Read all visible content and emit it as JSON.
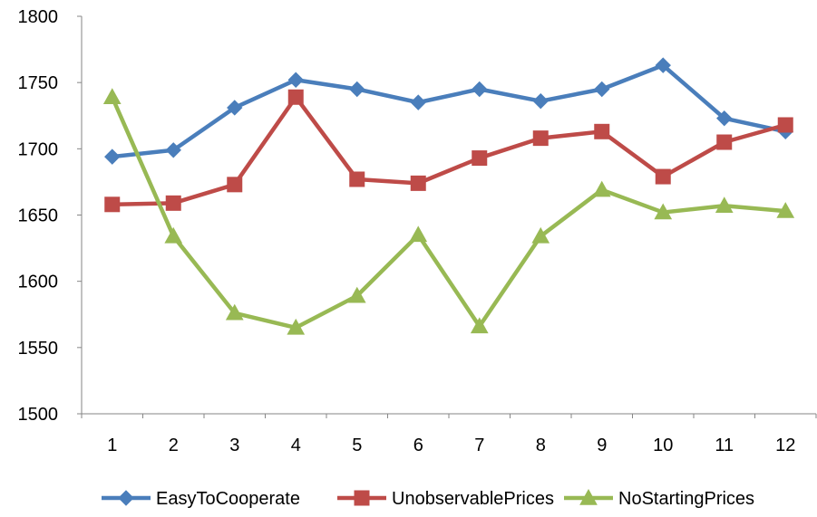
{
  "chart_data": {
    "type": "line",
    "x": [
      1,
      2,
      3,
      4,
      5,
      6,
      7,
      8,
      9,
      10,
      11,
      12
    ],
    "ylim": [
      1500,
      1800
    ],
    "yticks": [
      1500,
      1550,
      1600,
      1650,
      1700,
      1750,
      1800
    ],
    "grid": false,
    "legend_position": "bottom",
    "series": [
      {
        "name": "EasyToCooperate",
        "color": "#4A7EBB",
        "marker": "diamond",
        "values": [
          1694,
          1699,
          1731,
          1752,
          1745,
          1735,
          1745,
          1736,
          1745,
          1763,
          1723,
          1713
        ]
      },
      {
        "name": "UnobservablePrices",
        "color": "#BE4B48",
        "marker": "square",
        "values": [
          1658,
          1659,
          1673,
          1739,
          1677,
          1674,
          1693,
          1708,
          1713,
          1679,
          1705,
          1718
        ]
      },
      {
        "name": "NoStartingPrices",
        "color": "#98B954",
        "marker": "triangle",
        "values": [
          1739,
          1634,
          1576,
          1565,
          1589,
          1635,
          1566,
          1634,
          1669,
          1652,
          1657,
          1653
        ]
      }
    ]
  }
}
